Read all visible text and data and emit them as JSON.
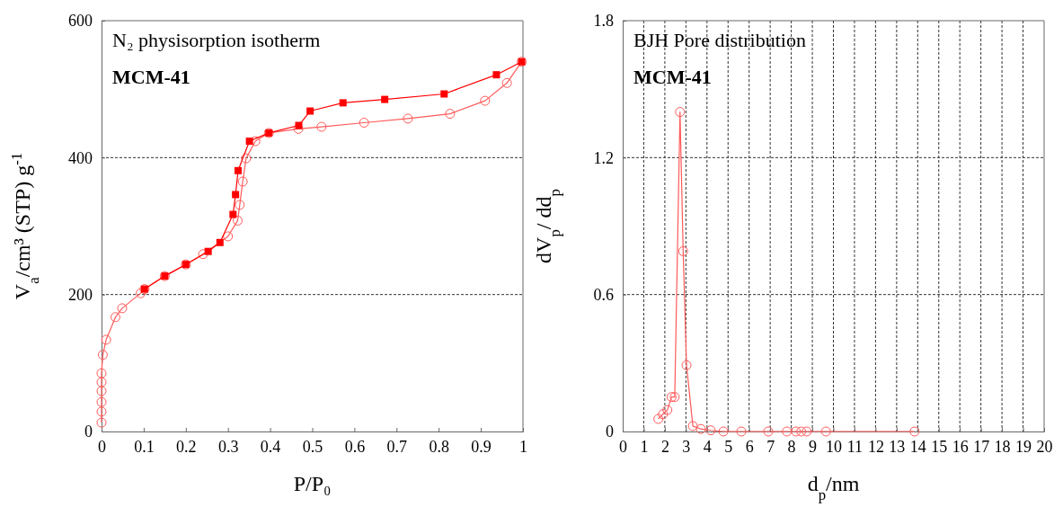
{
  "chart_data": [
    {
      "type": "line",
      "title": "N₂ physisorption isotherm",
      "subtitle": "MCM-41",
      "xlabel": "P/P₀",
      "ylabel": "V$_{a}$/cm³ (STP) g$^{-1}$",
      "xlim": [
        0,
        1
      ],
      "ylim": [
        0,
        600
      ],
      "xticks": [
        0,
        0.1,
        0.2,
        0.3,
        0.4,
        0.5,
        0.6,
        0.7,
        0.8,
        0.9,
        1
      ],
      "yticks": [
        0,
        200,
        400,
        600
      ],
      "grid": "y",
      "line_style": "solid",
      "series": [
        {
          "color": "#ff5a5a",
          "marker": "circle",
          "x": [
            0,
            0,
            0,
            0,
            0,
            0,
            0.003,
            0.011,
            0.033,
            0.049,
            0.093,
            0.102,
            0.15,
            0.2,
            0.241,
            0.3,
            0.323,
            0.328,
            0.335,
            0.343,
            0.365,
            0.397,
            0.467,
            0.522,
            0.623,
            0.727,
            0.827,
            0.91,
            0.962,
            0.997
          ],
          "values": [
            13,
            29,
            43,
            59,
            72,
            85,
            112,
            134,
            167,
            180,
            202,
            208,
            227,
            244,
            259,
            285,
            308,
            331,
            365,
            399,
            424,
            436,
            442,
            445,
            451,
            457,
            464,
            483,
            509,
            540
          ]
        },
        {
          "color": "#ff0000",
          "marker": "square",
          "x": [
            0.997,
            0.937,
            0.813,
            0.672,
            0.573,
            0.495,
            0.468,
            0.397,
            0.351,
            0.324,
            0.318,
            0.312,
            0.281,
            0.253,
            0.2,
            0.15,
            0.102
          ],
          "values": [
            540,
            521,
            493,
            485,
            480,
            468,
            447,
            436,
            424,
            381,
            346,
            317,
            276,
            263,
            244,
            227,
            208
          ]
        }
      ]
    },
    {
      "type": "line",
      "title": "BJH Pore distribution",
      "subtitle": "MCM-41",
      "xlabel": "d$_{p}$/nm",
      "ylabel": "dV$_{p}$/ dd$_{p}$",
      "xlim": [
        0,
        20
      ],
      "ylim": [
        0,
        1.8
      ],
      "xticks": [
        0,
        1,
        2,
        3,
        4,
        5,
        6,
        7,
        8,
        9,
        10,
        11,
        12,
        13,
        14,
        15,
        16,
        17,
        18,
        19,
        20
      ],
      "yticks": [
        0,
        0.6,
        1.2,
        1.8
      ],
      "grid": true,
      "line_style": "solid",
      "series": [
        {
          "color": "#ff5a5a",
          "marker": "circle",
          "x": [
            1.69,
            1.91,
            2.12,
            2.32,
            2.47,
            2.72,
            2.87,
            3.03,
            3.33,
            3.71,
            4.18,
            4.78,
            5.63,
            6.91,
            7.79,
            8.22,
            8.47,
            8.73,
            9.65,
            13.85
          ],
          "values": [
            0.055,
            0.076,
            0.094,
            0.151,
            0.151,
            1.4,
            0.79,
            0.29,
            0.024,
            0.011,
            0.005,
            0,
            0,
            0,
            0,
            0,
            0,
            0,
            0,
            0
          ]
        }
      ]
    }
  ]
}
